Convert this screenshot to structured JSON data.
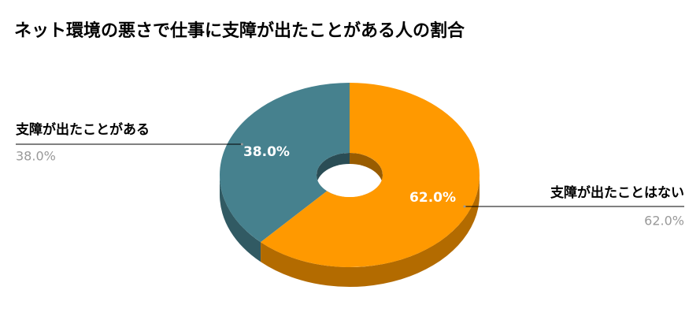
{
  "chart_data": {
    "type": "pie",
    "donut": true,
    "three_d": true,
    "title": "ネット環境の悪さで仕事に支障が出たことがある人の割合",
    "categories": [
      "支障が出たことがある",
      "支障が出たことはない"
    ],
    "values": [
      38.0,
      62.0
    ],
    "value_labels": [
      "38.0%",
      "62.0%"
    ],
    "colors": [
      "#46818e",
      "#ff9900"
    ]
  }
}
